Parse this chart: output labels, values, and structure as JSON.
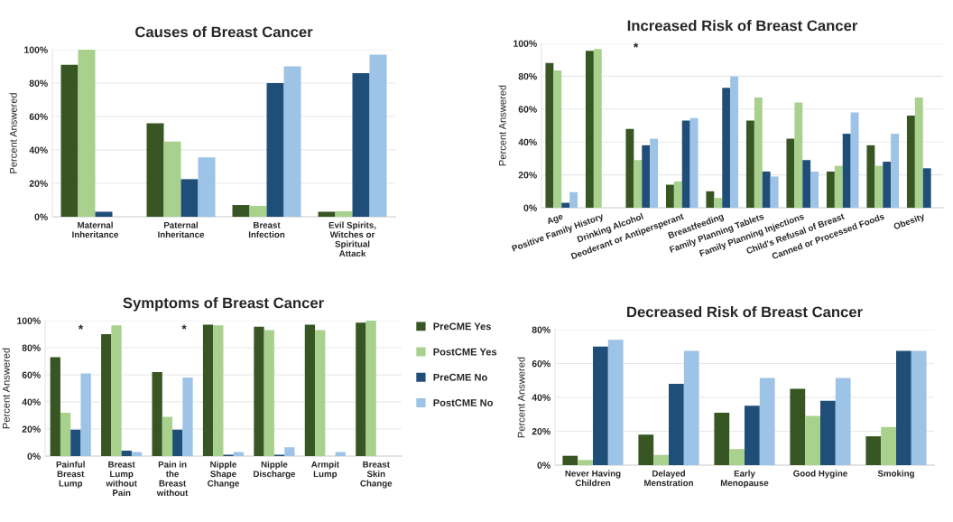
{
  "chart_data": [
    {
      "type": "bar",
      "title": "Causes of Breast Cancer",
      "ylabel": "Percent Answered",
      "categories": [
        "Maternal Inheritance",
        "Paternal Inheritance",
        "Breast Infection",
        "Evil Spirits, Witches or Spiritual Attack"
      ],
      "series": [
        {
          "name": "PreCME Yes",
          "color": "#375623",
          "values": [
            91,
            56,
            7,
            3
          ]
        },
        {
          "name": "PostCME Yes",
          "color": "#a9d18e",
          "values": [
            100,
            45,
            6.5,
            3.3
          ]
        },
        {
          "name": "PreCME No",
          "color": "#1f4e79",
          "values": [
            3,
            22.5,
            80,
            86
          ]
        },
        {
          "name": "PostCME No",
          "color": "#9dc3e6",
          "values": [
            null,
            35.5,
            90,
            97
          ]
        }
      ],
      "ylim": [
        0,
        100
      ],
      "yticks": [
        {
          "value": 0,
          "label": "0%"
        },
        {
          "value": 20,
          "label": "20%"
        },
        {
          "value": 40,
          "label": "40%"
        },
        {
          "value": 60,
          "label": "60%"
        },
        {
          "value": 80,
          "label": "80%"
        },
        {
          "value": 100,
          "label": "100%"
        }
      ],
      "grid": "y",
      "legend": "right"
    },
    {
      "type": "bar",
      "title": "Increased Risk of Breast Cancer",
      "ylabel": "Percent Answered",
      "categories": [
        "Age",
        "Positive Family History",
        "Drinking Alcohol",
        "Deoderant or Antipersperant",
        "Breastfeeding",
        "Family Planning Tablets",
        "Family Planning Injections",
        "Child's Refusal of Breast",
        "Canned or Processed Foods",
        "Obesity"
      ],
      "series": [
        {
          "color": "#375623",
          "values": [
            88,
            95.5,
            48,
            14,
            10,
            53,
            42,
            22,
            38,
            56
          ]
        },
        {
          "color": "#a9d18e",
          "values": [
            83.5,
            96.5,
            29,
            16,
            6,
            67,
            64,
            25.5,
            25.5,
            67
          ]
        },
        {
          "color": "#1f4e79",
          "values": [
            3,
            null,
            38,
            53,
            73,
            22,
            29,
            45,
            28,
            24
          ]
        },
        {
          "color": "#9dc3e6",
          "values": [
            9.5,
            null,
            42,
            54.5,
            80,
            19,
            22,
            58,
            45,
            null
          ]
        }
      ],
      "ylim": [
        0,
        100
      ],
      "yticks": [
        {
          "value": 0,
          "label": "0%"
        },
        {
          "value": 20,
          "label": "20%"
        },
        {
          "value": 40,
          "label": "40%"
        },
        {
          "value": 60,
          "label": "60%"
        },
        {
          "value": 80,
          "label": "80%"
        },
        {
          "value": 100,
          "label": "100%"
        }
      ],
      "grid": "y",
      "annotations": [
        "*"
      ]
    },
    {
      "type": "bar",
      "title": "Symptoms of Breast Cancer",
      "ylabel": "Percent Answered",
      "categories": [
        "Painful Breast Lump",
        "Breast Lump without Pain",
        "Pain in the Breast without",
        "Nipple Shape Change",
        "Nipple Discharge",
        "Armpit Lump",
        "Breast Skin Change"
      ],
      "series": [
        {
          "color": "#375623",
          "values": [
            73,
            90,
            62,
            97,
            95.5,
            97,
            98.5
          ]
        },
        {
          "color": "#a9d18e",
          "values": [
            32,
            96.5,
            29,
            96.5,
            93,
            93,
            100
          ]
        },
        {
          "color": "#1f4e79",
          "values": [
            19.5,
            4,
            19.5,
            1,
            1,
            null,
            null
          ]
        },
        {
          "color": "#9dc3e6",
          "values": [
            61,
            3,
            58,
            3,
            6.5,
            3,
            null
          ]
        }
      ],
      "ylim": [
        0,
        100
      ],
      "yticks": [
        {
          "value": 0,
          "label": "0%"
        },
        {
          "value": 20,
          "label": "20%"
        },
        {
          "value": 40,
          "label": "40%"
        },
        {
          "value": 60,
          "label": "60%"
        },
        {
          "value": 80,
          "label": "80%"
        },
        {
          "value": 100,
          "label": "100%"
        }
      ],
      "grid": "y",
      "annotations": [
        "*",
        "*"
      ]
    },
    {
      "type": "bar",
      "title": "Decreased Risk of Breast Cancer",
      "ylabel": "Percent Answered",
      "categories": [
        "Never Having Children",
        "Delayed Menstration",
        "Early Menopause",
        "Good Hygine",
        "Smoking"
      ],
      "series": [
        {
          "color": "#375623",
          "values": [
            5.5,
            18,
            31,
            45,
            17
          ]
        },
        {
          "color": "#a9d18e",
          "values": [
            3,
            6,
            9.5,
            29,
            22.5
          ]
        },
        {
          "color": "#1f4e79",
          "values": [
            70,
            48,
            35,
            38,
            67.5
          ]
        },
        {
          "color": "#9dc3e6",
          "values": [
            74,
            67.5,
            51.5,
            51.5,
            67.5
          ]
        }
      ],
      "ylim": [
        0,
        80
      ],
      "yticks": [
        {
          "value": 0,
          "label": "0%"
        },
        {
          "value": 20,
          "label": "20%"
        },
        {
          "value": 40,
          "label": "40%"
        },
        {
          "value": 60,
          "label": "60%"
        },
        {
          "value": 80,
          "label": "80%"
        }
      ],
      "grid": "y"
    }
  ]
}
